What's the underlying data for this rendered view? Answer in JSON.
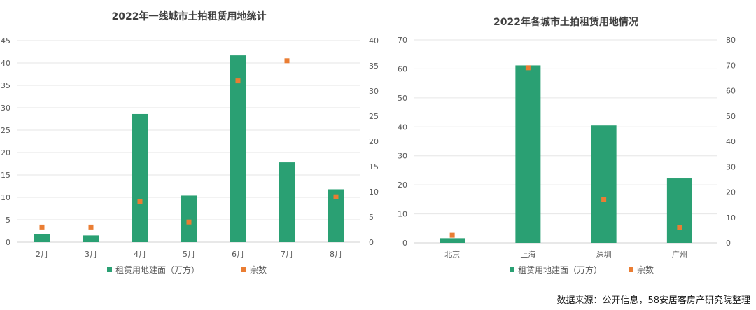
{
  "colors": {
    "bar": "#2aa073",
    "dot": "#ea7d33"
  },
  "chart_data": [
    {
      "type": "bar",
      "title": "2022年一线城市土拍租赁用地统计",
      "categories": [
        "2月",
        "3月",
        "4月",
        "5月",
        "6月",
        "7月",
        "8月"
      ],
      "series": [
        {
          "name": "租赁用地建面（万方）",
          "type": "bar",
          "axis": "left",
          "values": [
            1.8,
            1.5,
            28.6,
            10.4,
            41.7,
            17.8,
            11.8
          ]
        },
        {
          "name": "宗数",
          "type": "scatter",
          "axis": "right",
          "values": [
            3,
            3,
            8,
            4,
            32,
            36,
            9
          ]
        }
      ],
      "ylim_left": [
        0,
        45
      ],
      "yticks_left": [
        0,
        5,
        10,
        15,
        20,
        25,
        30,
        35,
        40,
        45
      ],
      "ylim_right": [
        0,
        40
      ],
      "yticks_right": [
        0,
        5,
        10,
        15,
        20,
        25,
        30,
        35,
        40
      ],
      "grid": true,
      "legend": "bottom"
    },
    {
      "type": "bar",
      "title": "2022年各城市土拍租赁用地情况",
      "categories": [
        "北京",
        "上海",
        "深圳",
        "广州"
      ],
      "series": [
        {
          "name": "租赁用地建面（万方）",
          "type": "bar",
          "axis": "left",
          "values": [
            1.6,
            61.2,
            40.5,
            22.2
          ]
        },
        {
          "name": "宗数",
          "type": "scatter",
          "axis": "right",
          "values": [
            3,
            69,
            17,
            6
          ]
        }
      ],
      "ylim_left": [
        0,
        70
      ],
      "yticks_left": [
        0,
        10,
        20,
        30,
        40,
        50,
        60,
        70
      ],
      "ylim_right": [
        0,
        80
      ],
      "yticks_right": [
        0,
        10,
        20,
        30,
        40,
        50,
        60,
        70,
        80
      ],
      "grid": true,
      "legend": "bottom"
    }
  ],
  "source_note": "数据来源：公开信息，58安居客房产研究院整理"
}
